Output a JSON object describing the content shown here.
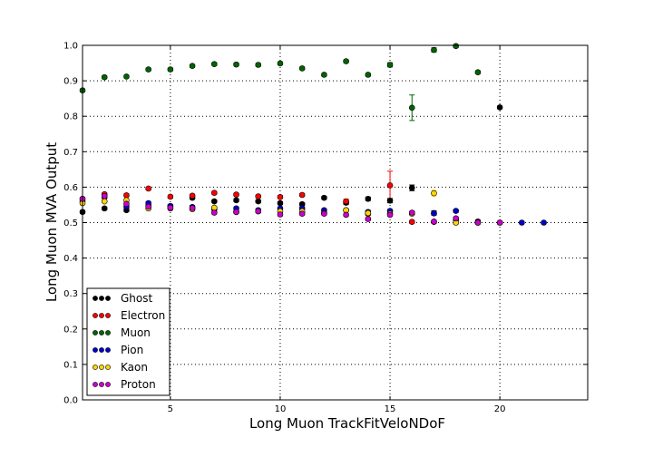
{
  "chart_data": {
    "type": "scatter",
    "title": "",
    "xlabel": "Long Muon TrackFitVeloNDoF",
    "ylabel": "Long Muon MVA Output",
    "xlim": [
      1,
      24
    ],
    "ylim": [
      0.0,
      1.0
    ],
    "xticks": [
      5,
      10,
      15,
      20
    ],
    "xtick_labels": [
      "5",
      "10",
      "15",
      "20"
    ],
    "yticks": [
      0.0,
      0.1,
      0.2,
      0.3,
      0.4,
      0.5,
      0.6,
      0.7,
      0.8,
      0.9,
      1.0
    ],
    "ytick_labels": [
      "0.0",
      "0.1",
      "0.2",
      "0.3",
      "0.4",
      "0.5",
      "0.6",
      "0.7",
      "0.8",
      "0.9",
      "1.0"
    ],
    "grid": true,
    "legend_position": "bottom-left",
    "series": [
      {
        "name": "Ghost",
        "color": "#000000",
        "x": [
          1,
          2,
          3,
          4,
          5,
          6,
          7,
          8,
          9,
          10,
          11,
          12,
          13,
          14,
          15,
          16,
          17,
          18,
          19,
          20
        ],
        "y": [
          0.53,
          0.54,
          0.535,
          0.548,
          0.545,
          0.57,
          0.56,
          0.563,
          0.56,
          0.555,
          0.552,
          0.57,
          0.556,
          0.567,
          0.562,
          0.598,
          0.527,
          0.508,
          0.503,
          0.825
        ],
        "yerr": [
          0.004,
          0.004,
          0.004,
          0.004,
          0.004,
          0.004,
          0.004,
          0.004,
          0.004,
          0.004,
          0.004,
          0.004,
          0.005,
          0.005,
          0.006,
          0.008,
          0.006,
          0.004,
          0.004,
          0.004
        ]
      },
      {
        "name": "Electron",
        "color": "#ff0000",
        "x": [
          1,
          2,
          3,
          4,
          5,
          6,
          7,
          8,
          9,
          10,
          11,
          12,
          13,
          14,
          15,
          16,
          17
        ],
        "y": [
          0.567,
          0.58,
          0.577,
          0.596,
          0.573,
          0.576,
          0.584,
          0.579,
          0.574,
          0.572,
          0.578,
          0.527,
          0.56,
          0.525,
          0.605,
          0.502,
          0.502
        ],
        "yerr": [
          0.004,
          0.004,
          0.004,
          0.004,
          0.004,
          0.004,
          0.004,
          0.004,
          0.004,
          0.004,
          0.004,
          0.004,
          0.006,
          0.005,
          0.04,
          0.004,
          0.004
        ]
      },
      {
        "name": "Muon",
        "color": "#006400",
        "x": [
          1,
          2,
          3,
          4,
          5,
          6,
          7,
          8,
          9,
          10,
          11,
          12,
          13,
          14,
          15,
          16,
          17,
          18,
          19
        ],
        "y": [
          0.873,
          0.91,
          0.912,
          0.932,
          0.932,
          0.942,
          0.947,
          0.946,
          0.945,
          0.949,
          0.935,
          0.917,
          0.955,
          0.917,
          0.945,
          0.824,
          0.987,
          0.998,
          0.924
        ],
        "yerr": [
          0.004,
          0.004,
          0.004,
          0.004,
          0.004,
          0.004,
          0.004,
          0.004,
          0.004,
          0.004,
          0.004,
          0.004,
          0.004,
          0.004,
          0.006,
          0.036,
          0.006,
          0.004,
          0.004
        ]
      },
      {
        "name": "Pion",
        "color": "#0000cc",
        "x": [
          1,
          2,
          3,
          4,
          5,
          6,
          7,
          8,
          9,
          10,
          11,
          12,
          13,
          14,
          15,
          16,
          17,
          18,
          19,
          20,
          21,
          22
        ],
        "y": [
          0.56,
          0.572,
          0.545,
          0.555,
          0.547,
          0.544,
          0.538,
          0.54,
          0.535,
          0.54,
          0.54,
          0.535,
          0.535,
          0.53,
          0.533,
          0.527,
          0.526,
          0.533,
          0.5,
          0.5,
          0.5,
          0.5
        ],
        "yerr": [
          0.004,
          0.004,
          0.004,
          0.004,
          0.004,
          0.004,
          0.004,
          0.004,
          0.004,
          0.004,
          0.004,
          0.004,
          0.004,
          0.004,
          0.004,
          0.004,
          0.004,
          0.004,
          0.003,
          0.003,
          0.003,
          0.003
        ]
      },
      {
        "name": "Kaon",
        "color": "#ffd700",
        "x": [
          1,
          2,
          3,
          4,
          5,
          6,
          7,
          8,
          9,
          10,
          11,
          12,
          13,
          14,
          15,
          16,
          17,
          18
        ],
        "y": [
          0.555,
          0.56,
          0.563,
          0.54,
          0.54,
          0.538,
          0.542,
          0.53,
          0.532,
          0.532,
          0.532,
          0.527,
          0.535,
          0.527,
          0.525,
          0.525,
          0.583,
          0.5
        ],
        "yerr": [
          0.004,
          0.004,
          0.004,
          0.004,
          0.004,
          0.004,
          0.004,
          0.004,
          0.004,
          0.004,
          0.004,
          0.004,
          0.004,
          0.004,
          0.004,
          0.004,
          0.008,
          0.004
        ]
      },
      {
        "name": "Proton",
        "color": "#cc00cc",
        "x": [
          1,
          2,
          3,
          4,
          5,
          6,
          7,
          8,
          9,
          10,
          11,
          12,
          13,
          14,
          15,
          16,
          17,
          18,
          19,
          20
        ],
        "y": [
          0.567,
          0.575,
          0.553,
          0.545,
          0.542,
          0.541,
          0.528,
          0.53,
          0.532,
          0.523,
          0.525,
          0.525,
          0.522,
          0.51,
          0.522,
          0.528,
          0.503,
          0.512,
          0.5,
          0.5
        ],
        "yerr": [
          0.004,
          0.004,
          0.004,
          0.004,
          0.004,
          0.004,
          0.004,
          0.004,
          0.004,
          0.004,
          0.004,
          0.004,
          0.004,
          0.004,
          0.004,
          0.004,
          0.004,
          0.004,
          0.003,
          0.003
        ]
      }
    ]
  }
}
